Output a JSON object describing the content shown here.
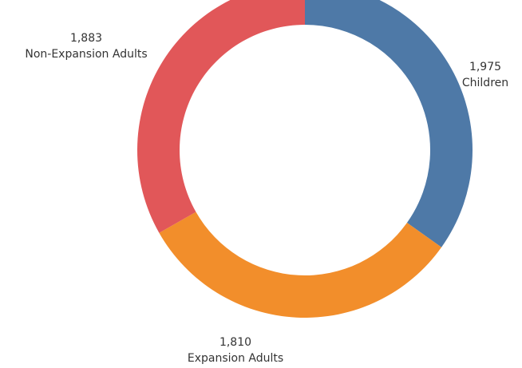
{
  "chart_data": {
    "type": "pie",
    "donut": true,
    "title": "",
    "categories": [
      "Children",
      "Expansion Adults",
      "Non-Expansion Adults"
    ],
    "values": [
      1975,
      1810,
      1883
    ],
    "value_labels": [
      "1,975",
      "1,810",
      "1,883"
    ],
    "colors": [
      "#4e79a7",
      "#f28e2b",
      "#e15759"
    ],
    "start": "top",
    "direction": "clockwise",
    "legend": "none"
  }
}
